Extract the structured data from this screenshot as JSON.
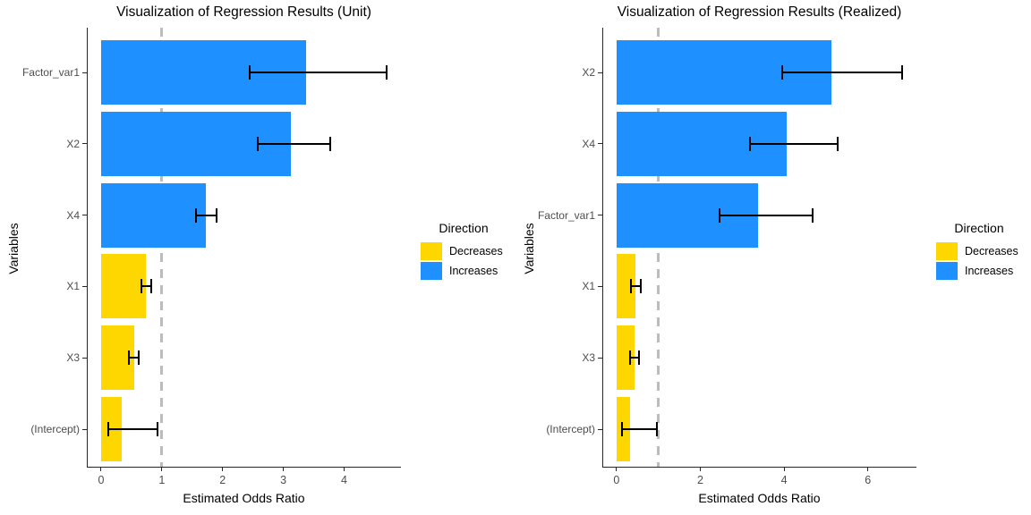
{
  "colors": {
    "increases": "#1E90FF",
    "decreases": "#FFD700",
    "reference_line": "#BCBCBC",
    "error_bar": "#000000",
    "axis_line": "#262626",
    "tick_label": "#4D4D4D",
    "text": "#000000"
  },
  "chart_data": [
    {
      "type": "bar",
      "orientation": "horizontal",
      "title": "Visualization of Regression Results (Unit)",
      "xlabel": "Estimated Odds Ratio",
      "ylabel": "Variables",
      "x_ticks": [
        0,
        1,
        2,
        3,
        4
      ],
      "x_domain": [
        -0.235,
        4.935
      ],
      "reference_line_x": 1,
      "grid": false,
      "legend": {
        "title": "Direction",
        "position": "right",
        "entries": [
          {
            "label": "Decreases",
            "direction": "decreases"
          },
          {
            "label": "Increases",
            "direction": "increases"
          }
        ]
      },
      "categories": [
        "Factor_var1",
        "X2",
        "X4",
        "X1",
        "X3",
        "(Intercept)"
      ],
      "bars": [
        {
          "variable": "Factor_var1",
          "odds_ratio": 3.37,
          "ci_low": 2.45,
          "ci_high": 4.7,
          "direction": "increases"
        },
        {
          "variable": "X2",
          "odds_ratio": 3.12,
          "ci_low": 2.58,
          "ci_high": 3.77,
          "direction": "increases"
        },
        {
          "variable": "X4",
          "odds_ratio": 1.72,
          "ci_low": 1.56,
          "ci_high": 1.9,
          "direction": "increases"
        },
        {
          "variable": "X1",
          "odds_ratio": 0.74,
          "ci_low": 0.67,
          "ci_high": 0.82,
          "direction": "decreases"
        },
        {
          "variable": "X3",
          "odds_ratio": 0.54,
          "ci_low": 0.45,
          "ci_high": 0.62,
          "direction": "decreases"
        },
        {
          "variable": "(Intercept)",
          "odds_ratio": 0.34,
          "ci_low": 0.12,
          "ci_high": 0.93,
          "direction": "decreases"
        }
      ]
    },
    {
      "type": "bar",
      "orientation": "horizontal",
      "title": "Visualization of Regression Results (Realized)",
      "xlabel": "Estimated Odds Ratio",
      "ylabel": "Variables",
      "x_ticks": [
        0,
        2,
        4,
        6
      ],
      "x_domain": [
        -0.34,
        7.16
      ],
      "reference_line_x": 1,
      "grid": false,
      "legend": {
        "title": "Direction",
        "position": "right",
        "entries": [
          {
            "label": "Decreases",
            "direction": "decreases"
          },
          {
            "label": "Increases",
            "direction": "increases"
          }
        ]
      },
      "categories": [
        "X2",
        "X4",
        "Factor_var1",
        "X1",
        "X3",
        "(Intercept)"
      ],
      "bars": [
        {
          "variable": "X2",
          "odds_ratio": 5.13,
          "ci_low": 3.95,
          "ci_high": 6.82,
          "direction": "increases"
        },
        {
          "variable": "X4",
          "odds_ratio": 4.07,
          "ci_low": 3.18,
          "ci_high": 5.28,
          "direction": "increases"
        },
        {
          "variable": "Factor_var1",
          "odds_ratio": 3.38,
          "ci_low": 2.45,
          "ci_high": 4.69,
          "direction": "increases"
        },
        {
          "variable": "X1",
          "odds_ratio": 0.45,
          "ci_low": 0.35,
          "ci_high": 0.57,
          "direction": "decreases"
        },
        {
          "variable": "X3",
          "odds_ratio": 0.43,
          "ci_low": 0.32,
          "ci_high": 0.53,
          "direction": "decreases"
        },
        {
          "variable": "(Intercept)",
          "odds_ratio": 0.33,
          "ci_low": 0.12,
          "ci_high": 0.96,
          "direction": "decreases"
        }
      ]
    }
  ]
}
